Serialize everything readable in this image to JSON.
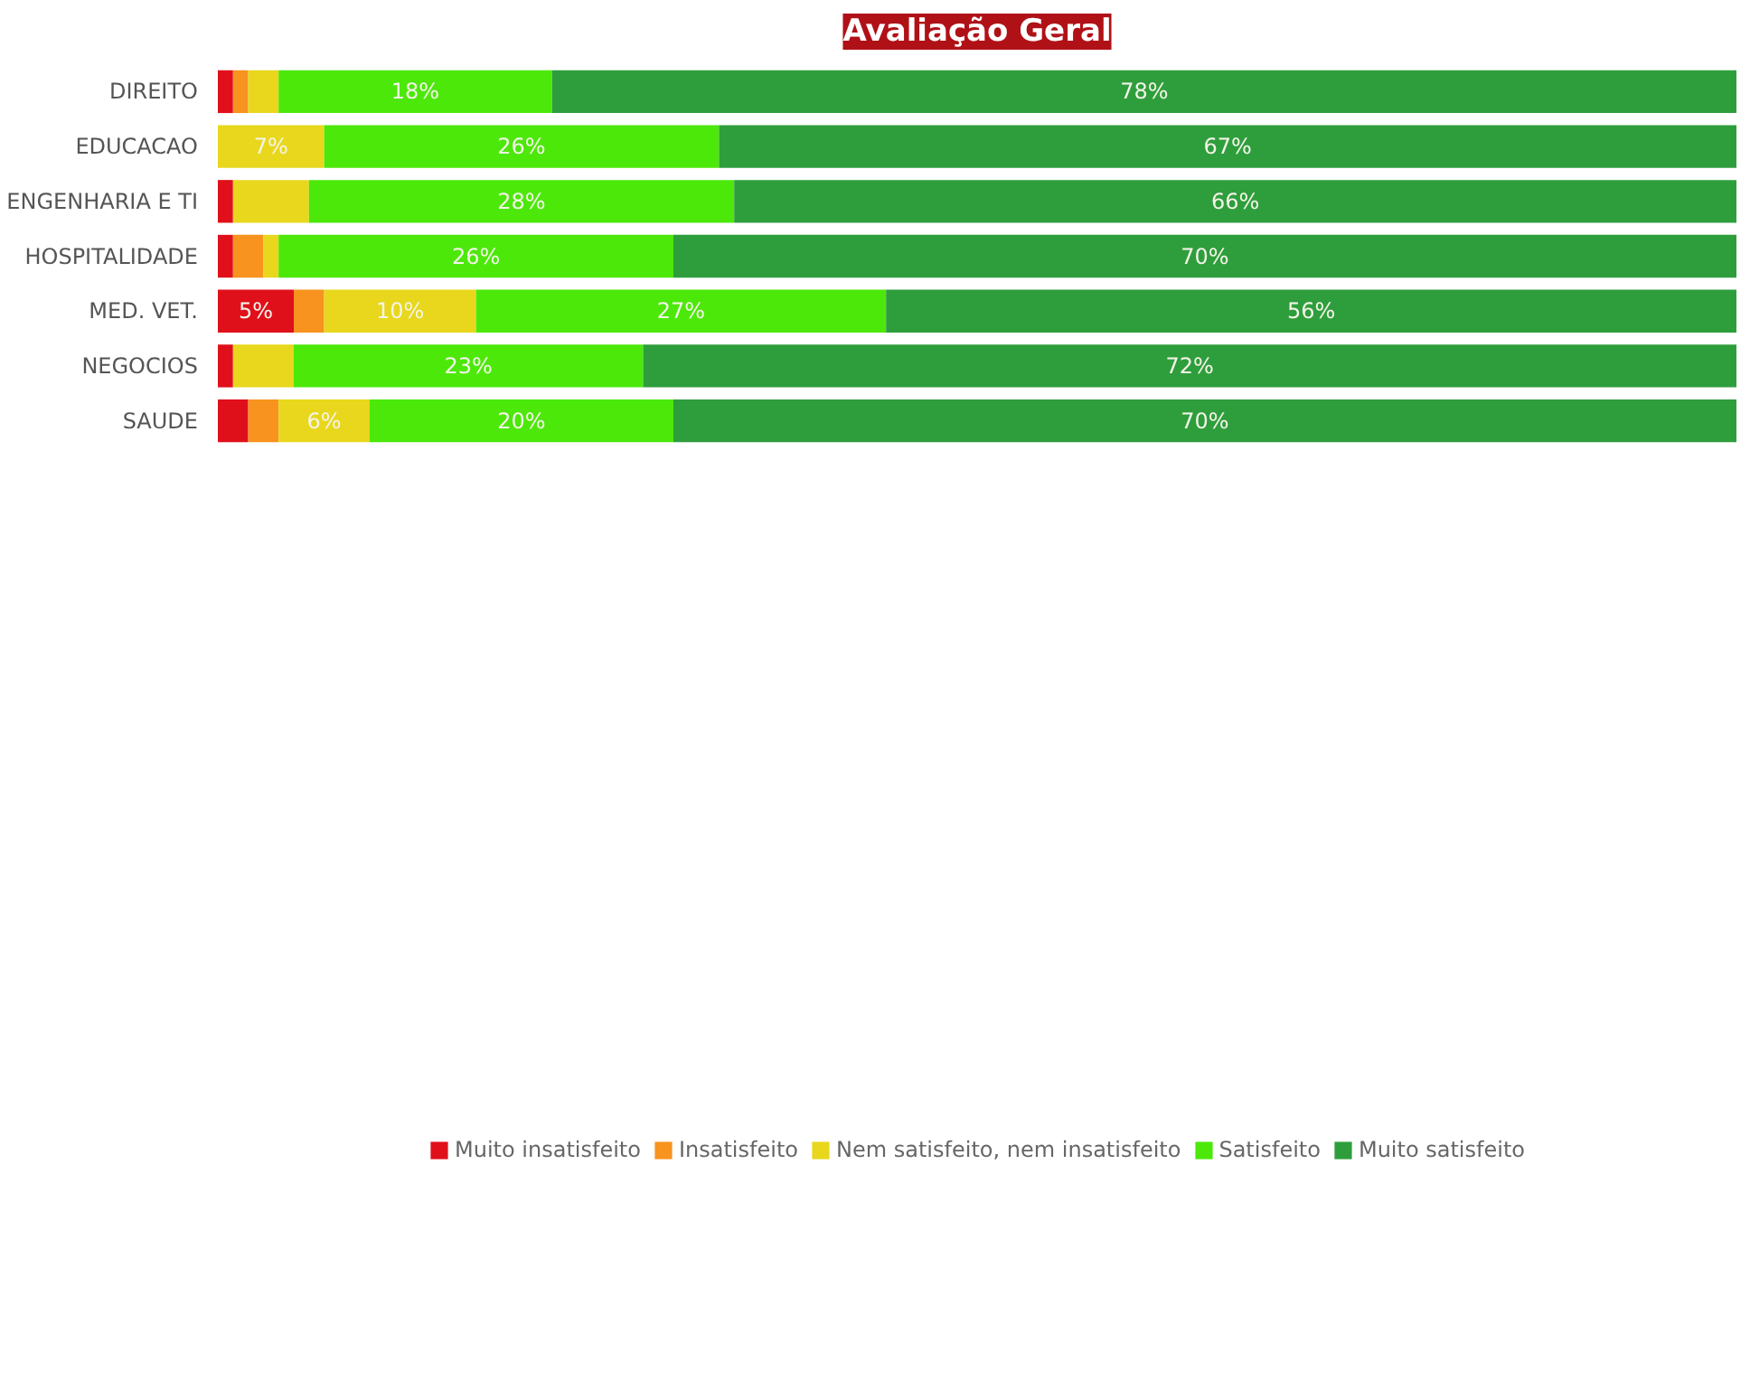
{
  "chart_data": {
    "type": "bar",
    "orientation": "horizontal",
    "stacked": true,
    "title": "Avaliação Geral",
    "categories": [
      "DIREITO",
      "EDUCACAO",
      "ENGENHARIA E TI",
      "HOSPITALIDADE",
      "MED. VET.",
      "NEGOCIOS",
      "SAUDE"
    ],
    "series": [
      {
        "name": "Muito insatisfeito",
        "color": "#e0101b",
        "values": [
          1,
          0,
          1,
          1,
          5,
          1,
          2
        ],
        "value_labels": [
          null,
          null,
          null,
          null,
          "5%",
          null,
          null
        ]
      },
      {
        "name": "Insatisfeito",
        "color": "#f7931e",
        "values": [
          1,
          0,
          0,
          2,
          2,
          0,
          2
        ],
        "value_labels": [
          null,
          null,
          null,
          null,
          null,
          null,
          null
        ]
      },
      {
        "name": "Nem satisfeito, nem insatisfeito",
        "color": "#e8d71c",
        "values": [
          2,
          7,
          5,
          1,
          10,
          4,
          6
        ],
        "value_labels": [
          null,
          "7%",
          null,
          null,
          "10%",
          null,
          "6%"
        ]
      },
      {
        "name": "Satisfeito",
        "color": "#4ce80a",
        "values": [
          18,
          26,
          28,
          26,
          27,
          23,
          20
        ],
        "value_labels": [
          "18%",
          "26%",
          "28%",
          "26%",
          "27%",
          "23%",
          "20%"
        ]
      },
      {
        "name": "Muito satisfeito",
        "color": "#2e9e3c",
        "values": [
          78,
          67,
          66,
          70,
          56,
          72,
          70
        ],
        "value_labels": [
          "78%",
          "67%",
          "66%",
          "70%",
          "56%",
          "72%",
          "70%"
        ]
      }
    ],
    "legend": "bottom",
    "grid": false
  }
}
